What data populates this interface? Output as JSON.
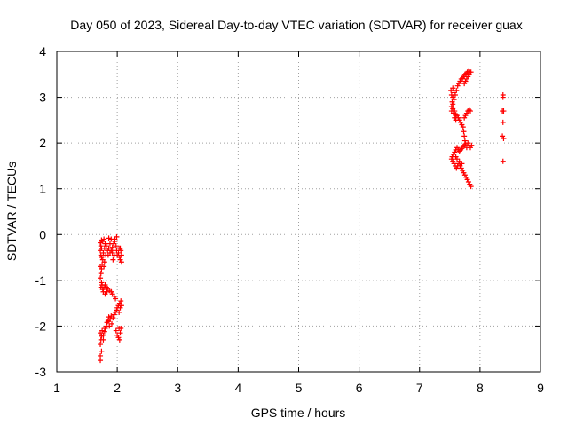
{
  "chart_data": {
    "type": "scatter",
    "title": "Day 050 of 2023, Sidereal Day-to-day VTEC variation (SDTVAR) for receiver guax",
    "xlabel": "GPS time / hours",
    "ylabel": "SDTVAR / TECUs",
    "xlim": [
      1,
      9
    ],
    "ylim": [
      -3,
      4
    ],
    "x_ticks": [
      "1",
      "2",
      "3",
      "4",
      "5",
      "6",
      "7",
      "8",
      "9"
    ],
    "y_ticks": [
      "-3",
      "-2",
      "-1",
      "0",
      "1",
      "2",
      "3",
      "4"
    ],
    "grid": true,
    "marker": "+",
    "color": "#ff0000",
    "series": [
      {
        "points": [
          [
            1.72,
            -2.75
          ],
          [
            1.72,
            -2.65
          ],
          [
            1.74,
            -2.55
          ],
          [
            1.72,
            -2.4
          ],
          [
            1.73,
            -2.3
          ],
          [
            1.74,
            -2.22
          ],
          [
            1.72,
            -2.15
          ],
          [
            1.75,
            -2.1
          ],
          [
            1.77,
            -2.2
          ],
          [
            1.79,
            -2.12
          ],
          [
            1.8,
            -2.05
          ],
          [
            1.82,
            -2.0
          ],
          [
            1.83,
            -1.92
          ],
          [
            1.85,
            -1.88
          ],
          [
            1.86,
            -1.8
          ],
          [
            1.88,
            -1.85
          ],
          [
            1.9,
            -1.78
          ],
          [
            1.91,
            -1.95
          ],
          [
            1.93,
            -1.82
          ],
          [
            1.95,
            -1.75
          ],
          [
            1.97,
            -1.7
          ],
          [
            1.99,
            -1.65
          ],
          [
            2.0,
            -1.6
          ],
          [
            2.02,
            -1.55
          ],
          [
            2.04,
            -1.5
          ],
          [
            2.06,
            -1.45
          ],
          [
            2.05,
            -1.6
          ],
          [
            2.03,
            -1.7
          ],
          [
            2.07,
            -1.55
          ],
          [
            1.98,
            -2.1
          ],
          [
            2.0,
            -2.2
          ],
          [
            2.02,
            -2.25
          ],
          [
            2.04,
            -2.3
          ],
          [
            2.05,
            -2.15
          ],
          [
            2.03,
            -2.05
          ],
          [
            2.06,
            -2.05
          ],
          [
            1.97,
            -1.4
          ],
          [
            1.95,
            -1.35
          ],
          [
            1.92,
            -1.3
          ],
          [
            1.9,
            -1.25
          ],
          [
            1.87,
            -1.22
          ],
          [
            1.84,
            -1.18
          ],
          [
            1.82,
            -1.15
          ],
          [
            1.8,
            -1.1
          ],
          [
            1.78,
            -1.15
          ],
          [
            1.76,
            -1.2
          ],
          [
            1.75,
            -1.1
          ],
          [
            1.74,
            -1.05
          ],
          [
            1.73,
            -1.15
          ],
          [
            1.72,
            -0.95
          ],
          [
            1.73,
            -0.85
          ],
          [
            1.74,
            -0.75
          ],
          [
            1.72,
            -0.7
          ],
          [
            1.75,
            -0.65
          ],
          [
            1.76,
            -0.55
          ],
          [
            1.74,
            -0.5
          ],
          [
            1.73,
            -0.45
          ],
          [
            1.72,
            -0.35
          ],
          [
            1.74,
            -0.3
          ],
          [
            1.73,
            -0.25
          ],
          [
            1.72,
            -0.18
          ],
          [
            1.74,
            -0.12
          ],
          [
            1.76,
            -0.15
          ],
          [
            1.78,
            -0.1
          ],
          [
            1.8,
            -0.2
          ],
          [
            1.82,
            -0.25
          ],
          [
            1.84,
            -0.35
          ],
          [
            1.86,
            -0.3
          ],
          [
            1.85,
            -0.45
          ],
          [
            1.88,
            -0.4
          ],
          [
            1.9,
            -0.35
          ],
          [
            1.92,
            -0.28
          ],
          [
            1.94,
            -0.2
          ],
          [
            1.96,
            -0.15
          ],
          [
            1.98,
            -0.25
          ],
          [
            1.99,
            -0.35
          ],
          [
            2.0,
            -0.45
          ],
          [
            2.02,
            -0.4
          ],
          [
            2.04,
            -0.5
          ],
          [
            2.05,
            -0.55
          ],
          [
            2.07,
            -0.45
          ],
          [
            2.06,
            -0.35
          ],
          [
            2.05,
            -0.3
          ],
          [
            2.07,
            -0.6
          ],
          [
            1.95,
            -0.45
          ],
          [
            1.93,
            -0.55
          ],
          [
            1.92,
            -0.4
          ],
          [
            1.96,
            -0.1
          ],
          [
            1.9,
            -0.1
          ],
          [
            1.88,
            -0.2
          ],
          [
            1.86,
            -0.08
          ],
          [
            1.99,
            -0.05
          ],
          [
            2.03,
            -0.3
          ],
          [
            1.77,
            -0.4
          ],
          [
            1.79,
            -0.3
          ],
          [
            1.81,
            -0.45
          ],
          [
            1.78,
            -0.7
          ],
          [
            1.79,
            -0.6
          ],
          [
            1.77,
            -1.25
          ],
          [
            1.8,
            -1.3
          ],
          [
            1.83,
            -1.25
          ],
          [
            1.85,
            -1.9
          ],
          [
            1.87,
            -2.0
          ],
          [
            1.77,
            -2.3
          ]
        ]
      },
      {
        "points": [
          [
            7.52,
            3.15
          ],
          [
            7.53,
            3.05
          ],
          [
            7.55,
            3.0
          ],
          [
            7.54,
            2.9
          ],
          [
            7.53,
            2.8
          ],
          [
            7.55,
            2.75
          ],
          [
            7.53,
            2.7
          ],
          [
            7.56,
            2.65
          ],
          [
            7.58,
            2.7
          ],
          [
            7.6,
            2.62
          ],
          [
            7.62,
            2.6
          ],
          [
            7.64,
            2.55
          ],
          [
            7.66,
            2.5
          ],
          [
            7.68,
            2.45
          ],
          [
            7.7,
            2.4
          ],
          [
            7.72,
            2.35
          ],
          [
            7.73,
            2.25
          ],
          [
            7.74,
            2.15
          ],
          [
            7.75,
            2.05
          ],
          [
            7.76,
            1.98
          ],
          [
            7.74,
            1.95
          ],
          [
            7.72,
            1.92
          ],
          [
            7.7,
            1.88
          ],
          [
            7.68,
            1.85
          ],
          [
            7.66,
            1.82
          ],
          [
            7.64,
            1.85
          ],
          [
            7.62,
            1.9
          ],
          [
            7.6,
            1.85
          ],
          [
            7.58,
            1.8
          ],
          [
            7.56,
            1.75
          ],
          [
            7.54,
            1.7
          ],
          [
            7.53,
            1.65
          ],
          [
            7.55,
            1.6
          ],
          [
            7.57,
            1.55
          ],
          [
            7.59,
            1.5
          ],
          [
            7.61,
            1.45
          ],
          [
            7.63,
            1.5
          ],
          [
            7.65,
            1.55
          ],
          [
            7.67,
            1.5
          ],
          [
            7.69,
            1.45
          ],
          [
            7.71,
            1.4
          ],
          [
            7.73,
            1.35
          ],
          [
            7.75,
            1.3
          ],
          [
            7.77,
            1.25
          ],
          [
            7.79,
            1.2
          ],
          [
            7.81,
            1.15
          ],
          [
            7.83,
            1.1
          ],
          [
            7.85,
            1.05
          ],
          [
            7.55,
            2.85
          ],
          [
            7.57,
            2.95
          ],
          [
            7.59,
            3.05
          ],
          [
            7.61,
            3.15
          ],
          [
            7.63,
            3.25
          ],
          [
            7.65,
            3.3
          ],
          [
            7.67,
            3.35
          ],
          [
            7.69,
            3.4
          ],
          [
            7.71,
            3.42
          ],
          [
            7.73,
            3.45
          ],
          [
            7.75,
            3.5
          ],
          [
            7.77,
            3.52
          ],
          [
            7.79,
            3.55
          ],
          [
            7.81,
            3.56
          ],
          [
            7.83,
            3.55
          ],
          [
            7.85,
            3.55
          ],
          [
            7.82,
            3.5
          ],
          [
            7.8,
            3.45
          ],
          [
            7.78,
            3.4
          ],
          [
            7.76,
            3.35
          ],
          [
            7.74,
            3.3
          ],
          [
            7.8,
            2.7
          ],
          [
            7.82,
            2.72
          ],
          [
            7.84,
            2.7
          ],
          [
            7.78,
            2.65
          ],
          [
            7.76,
            2.6
          ],
          [
            7.74,
            2.55
          ],
          [
            7.8,
            2.0
          ],
          [
            7.82,
            1.95
          ],
          [
            7.84,
            1.9
          ],
          [
            7.86,
            1.95
          ],
          [
            7.78,
            1.9
          ],
          [
            7.57,
            3.1
          ],
          [
            7.55,
            3.2
          ],
          [
            7.6,
            1.7
          ],
          [
            7.62,
            1.65
          ],
          [
            7.66,
            1.6
          ],
          [
            7.7,
            1.55
          ],
          [
            7.58,
            2.55
          ],
          [
            7.6,
            2.5
          ],
          [
            8.38,
            3.05
          ],
          [
            8.38,
            3.0
          ],
          [
            8.37,
            2.7
          ],
          [
            8.39,
            2.7
          ],
          [
            8.38,
            2.45
          ],
          [
            8.37,
            2.15
          ],
          [
            8.39,
            2.1
          ],
          [
            8.38,
            1.6
          ]
        ]
      }
    ]
  }
}
